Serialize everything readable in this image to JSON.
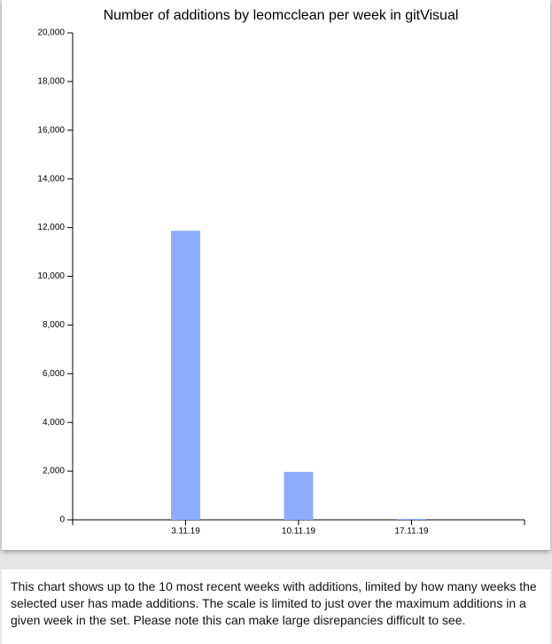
{
  "chart_data": {
    "type": "bar",
    "title": "Number of additions by leomcclean per week in gitVisual",
    "categories": [
      "3.11.19",
      "10.11.19",
      "17.11.19"
    ],
    "values": [
      11870,
      1970,
      40
    ],
    "color": "#8fadff",
    "ylim": [
      0,
      20000
    ],
    "yticks": [
      0,
      {
        "value": 2000,
        "label": "2,000"
      },
      {
        "value": 4000,
        "label": "4,000"
      },
      {
        "value": 6000,
        "label": "6,000"
      },
      {
        "value": 8000,
        "label": "8,000"
      },
      {
        "value": 10000,
        "label": "10,000"
      },
      {
        "value": 12000,
        "label": "12,000"
      },
      {
        "value": 14000,
        "label": "14,000"
      },
      {
        "value": 16000,
        "label": "16,000"
      },
      {
        "value": 18000,
        "label": "18,000"
      },
      {
        "value": 20000,
        "label": "20,000"
      }
    ],
    "grid": false
  },
  "caption": "This chart shows up to the 10 most recent weeks with additions, limited by how many weeks the selected user has made additions. The scale is limited to just over the maximum additions in a given week in the set. Please note this can make large disrepancies difficult to see."
}
